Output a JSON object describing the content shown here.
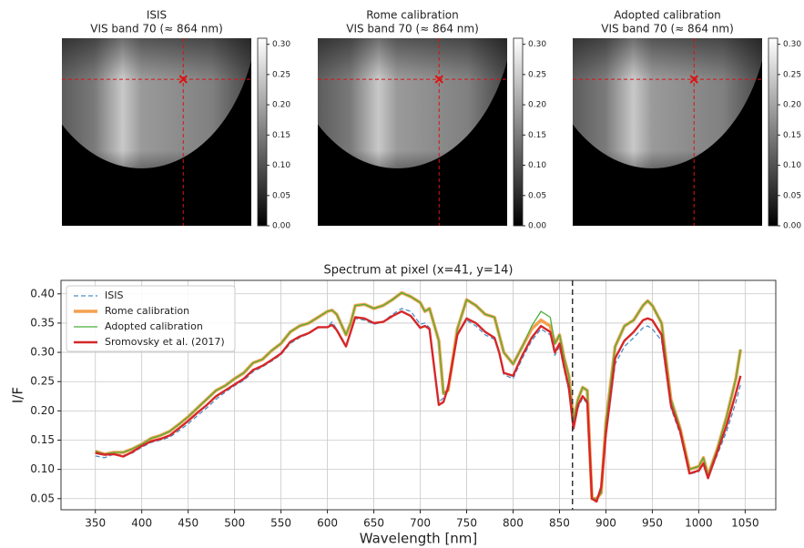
{
  "chart_data": [
    {
      "type": "heatmap",
      "title": "ISIS",
      "subtitle": "VIS band 70 (≈ 864 nm)",
      "xlim": [
        0,
        64
      ],
      "ylim": [
        64,
        0
      ],
      "marker": {
        "x": 41,
        "y": 14,
        "color": "#e01010"
      },
      "colorbar": {
        "lim": [
          0,
          0.31
        ],
        "ticks": [
          {
            "value": 0,
            "label": "0.00"
          },
          0.05,
          {
            "value": 0.1,
            "label": "0.10"
          },
          0.15,
          {
            "value": 0.2,
            "label": "0.20"
          },
          0.25,
          {
            "value": 0.3,
            "label": "0.30"
          }
        ]
      }
    },
    {
      "type": "heatmap",
      "title": "Rome calibration",
      "subtitle": "VIS band 70 (≈ 864 nm)",
      "xlim": [
        0,
        64
      ],
      "ylim": [
        64,
        0
      ],
      "marker": {
        "x": 41,
        "y": 14,
        "color": "#e01010"
      },
      "colorbar": {
        "lim": [
          0,
          0.31
        ],
        "ticks": [
          {
            "value": 0,
            "label": "0.00"
          },
          0.05,
          {
            "value": 0.1,
            "label": "0.10"
          },
          0.15,
          {
            "value": 0.2,
            "label": "0.20"
          },
          0.25,
          {
            "value": 0.3,
            "label": "0.30"
          }
        ]
      }
    },
    {
      "type": "heatmap",
      "title": "Adopted calibration",
      "subtitle": "VIS band 70 (≈ 864 nm)",
      "xlim": [
        0,
        64
      ],
      "ylim": [
        64,
        0
      ],
      "marker": {
        "x": 41,
        "y": 14,
        "color": "#e01010"
      },
      "colorbar": {
        "lim": [
          0,
          0.31
        ],
        "ticks": [
          {
            "value": 0,
            "label": "0.00"
          },
          0.05,
          {
            "value": 0.1,
            "label": "0.10"
          },
          0.15,
          {
            "value": 0.2,
            "label": "0.20"
          },
          0.25,
          {
            "value": 0.3,
            "label": "0.30"
          }
        ]
      }
    },
    {
      "type": "line",
      "title": "Spectrum at pixel (x=41, y=14)",
      "x_label": "Wavelength [nm]",
      "y_label": "I/F",
      "xlim": [
        313,
        1083
      ],
      "ylim": [
        0.031,
        0.423
      ],
      "xticks": [
        350,
        400,
        450,
        500,
        550,
        600,
        650,
        700,
        750,
        800,
        850,
        900,
        950,
        1000,
        1050
      ],
      "yticks": [
        0.05,
        {
          "value": 0.1,
          "label": "0.10"
        },
        0.15,
        {
          "value": 0.2,
          "label": "0.20"
        },
        0.25,
        {
          "value": 0.3,
          "label": "0.30"
        },
        0.35,
        {
          "value": 0.4,
          "label": "0.40"
        }
      ],
      "grid": true,
      "legend": "upper left",
      "vline": 864,
      "x": [
        350,
        360,
        370,
        380,
        390,
        400,
        410,
        420,
        430,
        440,
        450,
        460,
        470,
        480,
        490,
        500,
        510,
        520,
        530,
        540,
        550,
        560,
        570,
        580,
        590,
        600,
        605,
        610,
        620,
        625,
        630,
        640,
        650,
        660,
        670,
        680,
        690,
        700,
        705,
        710,
        720,
        725,
        730,
        740,
        750,
        760,
        770,
        780,
        785,
        790,
        800,
        810,
        820,
        830,
        840,
        845,
        850,
        855,
        860,
        865,
        870,
        875,
        880,
        885,
        890,
        895,
        900,
        910,
        920,
        930,
        940,
        945,
        950,
        960,
        970,
        980,
        990,
        1000,
        1005,
        1010,
        1020,
        1030,
        1040,
        1045
      ],
      "series": [
        {
          "name": "ISIS",
          "color": "#4a8fc9",
          "width": 1.3,
          "dash": true,
          "values": [
            0.123,
            0.12,
            0.126,
            0.124,
            0.128,
            0.138,
            0.146,
            0.15,
            0.155,
            0.166,
            0.178,
            0.192,
            0.205,
            0.22,
            0.232,
            0.243,
            0.252,
            0.267,
            0.275,
            0.285,
            0.296,
            0.315,
            0.325,
            0.332,
            0.342,
            0.343,
            0.352,
            0.34,
            0.312,
            0.336,
            0.358,
            0.355,
            0.348,
            0.352,
            0.365,
            0.375,
            0.37,
            0.348,
            0.35,
            0.342,
            0.215,
            0.222,
            0.245,
            0.33,
            0.355,
            0.345,
            0.33,
            0.322,
            0.298,
            0.262,
            0.255,
            0.29,
            0.32,
            0.34,
            0.33,
            0.295,
            0.31,
            0.27,
            0.235,
            0.168,
            0.205,
            0.222,
            0.212,
            0.052,
            0.048,
            0.072,
            0.155,
            0.28,
            0.31,
            0.325,
            0.342,
            0.345,
            0.34,
            0.32,
            0.205,
            0.16,
            0.092,
            0.096,
            0.108,
            0.086,
            0.125,
            0.165,
            0.215,
            0.245
          ]
        },
        {
          "name": "Rome calibration",
          "color": "#f5a04e",
          "width": 3.5,
          "dash": false,
          "values": [
            0.131,
            0.126,
            0.129,
            0.129,
            0.135,
            0.143,
            0.153,
            0.158,
            0.165,
            0.177,
            0.19,
            0.205,
            0.22,
            0.235,
            0.243,
            0.255,
            0.265,
            0.282,
            0.288,
            0.303,
            0.315,
            0.335,
            0.345,
            0.35,
            0.36,
            0.37,
            0.372,
            0.365,
            0.33,
            0.35,
            0.38,
            0.382,
            0.375,
            0.38,
            0.39,
            0.402,
            0.395,
            0.385,
            0.37,
            0.375,
            0.32,
            0.23,
            0.235,
            0.34,
            0.39,
            0.38,
            0.365,
            0.36,
            0.33,
            0.3,
            0.28,
            0.31,
            0.34,
            0.355,
            0.345,
            0.315,
            0.33,
            0.29,
            0.26,
            0.185,
            0.22,
            0.24,
            0.235,
            0.05,
            0.05,
            0.06,
            0.18,
            0.31,
            0.345,
            0.355,
            0.38,
            0.388,
            0.38,
            0.35,
            0.22,
            0.17,
            0.1,
            0.105,
            0.12,
            0.09,
            0.135,
            0.19,
            0.255,
            0.305
          ]
        },
        {
          "name": "Adopted calibration",
          "color": "#4caf3a",
          "width": 1.3,
          "dash": false,
          "values": [
            0.131,
            0.126,
            0.129,
            0.129,
            0.135,
            0.143,
            0.153,
            0.158,
            0.165,
            0.177,
            0.19,
            0.205,
            0.22,
            0.235,
            0.243,
            0.255,
            0.265,
            0.282,
            0.288,
            0.303,
            0.315,
            0.335,
            0.345,
            0.35,
            0.36,
            0.37,
            0.372,
            0.365,
            0.33,
            0.35,
            0.38,
            0.382,
            0.375,
            0.38,
            0.39,
            0.402,
            0.395,
            0.385,
            0.37,
            0.375,
            0.32,
            0.23,
            0.235,
            0.34,
            0.39,
            0.38,
            0.365,
            0.36,
            0.33,
            0.3,
            0.28,
            0.31,
            0.345,
            0.37,
            0.36,
            0.315,
            0.33,
            0.29,
            0.26,
            0.185,
            0.22,
            0.24,
            0.235,
            0.05,
            0.05,
            0.06,
            0.18,
            0.31,
            0.345,
            0.355,
            0.38,
            0.388,
            0.38,
            0.35,
            0.22,
            0.17,
            0.1,
            0.105,
            0.12,
            0.09,
            0.135,
            0.19,
            0.255,
            0.305
          ]
        },
        {
          "name": "Sromovsky et al. (2017)",
          "color": "#d62728",
          "width": 2.4,
          "dash": false,
          "values": [
            0.128,
            0.125,
            0.126,
            0.122,
            0.13,
            0.14,
            0.148,
            0.152,
            0.158,
            0.17,
            0.183,
            0.197,
            0.21,
            0.225,
            0.235,
            0.245,
            0.255,
            0.27,
            0.277,
            0.287,
            0.298,
            0.318,
            0.327,
            0.333,
            0.343,
            0.343,
            0.347,
            0.338,
            0.31,
            0.335,
            0.36,
            0.358,
            0.35,
            0.352,
            0.362,
            0.37,
            0.362,
            0.342,
            0.345,
            0.34,
            0.21,
            0.215,
            0.24,
            0.33,
            0.358,
            0.35,
            0.335,
            0.325,
            0.3,
            0.265,
            0.26,
            0.295,
            0.325,
            0.345,
            0.335,
            0.3,
            0.315,
            0.275,
            0.24,
            0.17,
            0.21,
            0.225,
            0.215,
            0.05,
            0.045,
            0.07,
            0.16,
            0.29,
            0.32,
            0.335,
            0.355,
            0.358,
            0.355,
            0.33,
            0.21,
            0.165,
            0.093,
            0.098,
            0.11,
            0.085,
            0.13,
            0.175,
            0.23,
            0.26
          ]
        }
      ]
    }
  ]
}
